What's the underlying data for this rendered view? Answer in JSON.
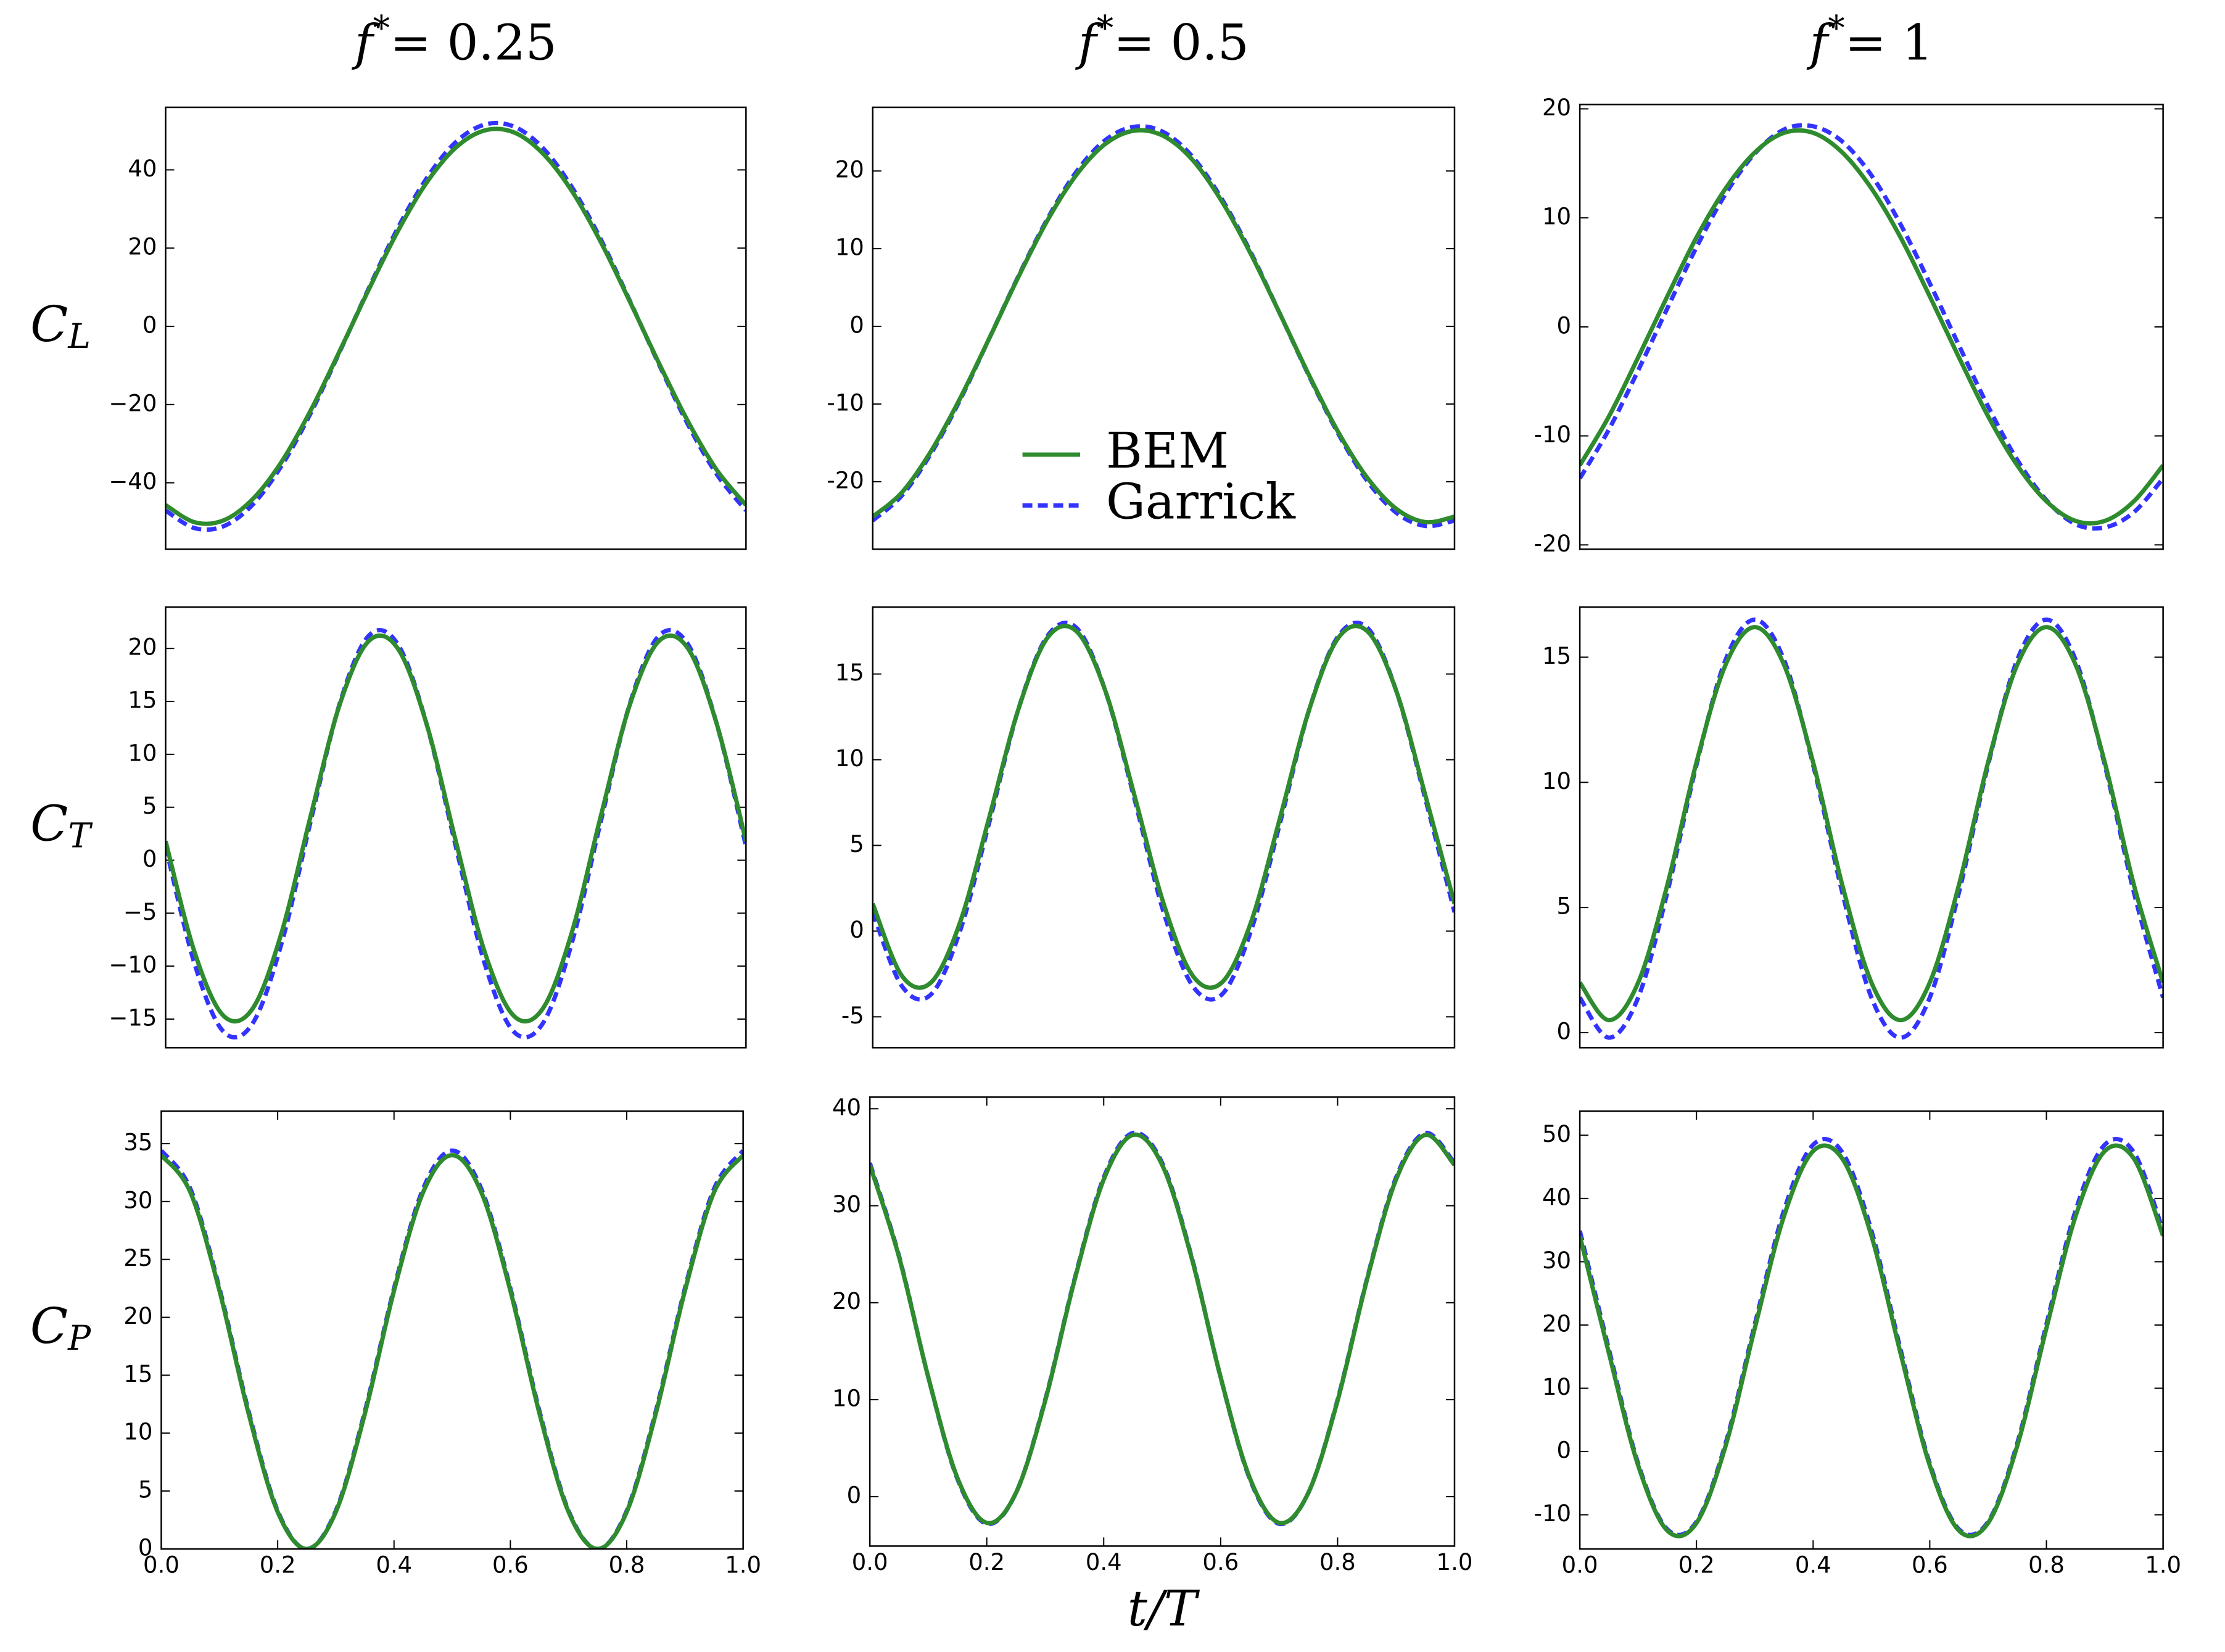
{
  "chart_data": [
    {
      "type": "line",
      "title": "f*= 0.25",
      "ylabel": "CL",
      "x": [
        0,
        0.05,
        0.1,
        0.15,
        0.2,
        0.25,
        0.3,
        0.35,
        0.4,
        0.45,
        0.5,
        0.55,
        0.6,
        0.65,
        0.7,
        0.75,
        0.8,
        0.85,
        0.9,
        0.95,
        1
      ],
      "series": [
        {
          "name": "BEM",
          "color": "#2e8b2e",
          "linestyle": "solid",
          "values": [
            -45.7,
            -50.1,
            -49.6,
            -44.2,
            -34.6,
            -21.5,
            -6.3,
            9.4,
            24.3,
            36.8,
            45.7,
            50.1,
            49.6,
            44.2,
            34.6,
            21.5,
            6.3,
            -9.4,
            -24.3,
            -36.8,
            -45.7
          ]
        },
        {
          "name": "Garrick",
          "color": "#3333ff",
          "linestyle": "dashed",
          "values": [
            -47.1,
            -51.6,
            -51.1,
            -45.6,
            -35.6,
            -22.2,
            -6.5,
            9.7,
            25.1,
            37.9,
            47.1,
            51.6,
            51.1,
            45.6,
            35.6,
            22.2,
            6.5,
            -9.7,
            -25.1,
            -37.9,
            -47.1
          ]
        }
      ],
      "xlim": [
        0,
        1
      ],
      "ylim": [
        -57,
        56
      ],
      "yticks": [
        {
          "value": -40,
          "label": "−40"
        },
        {
          "value": -20,
          "label": "−20"
        },
        0,
        20,
        40
      ]
    },
    {
      "type": "line",
      "title": "f*= 0.5",
      "legend": "lower center",
      "x": [
        0,
        0.05,
        0.1,
        0.15,
        0.2,
        0.25,
        0.3,
        0.35,
        0.4,
        0.45,
        0.5,
        0.55,
        0.6,
        0.65,
        0.7,
        0.75,
        0.8,
        0.85,
        0.9,
        0.95,
        1
      ],
      "series": [
        {
          "name": "BEM",
          "color": "#2e8b2e",
          "linestyle": "solid",
          "values": [
            -24.5,
            -21.4,
            -16.1,
            -9.3,
            -1.6,
            6.3,
            13.6,
            19.5,
            23.5,
            25.2,
            24.5,
            21.4,
            16.1,
            9.3,
            1.6,
            -6.3,
            -13.6,
            -19.5,
            -23.5,
            -25.2,
            -24.5
          ]
        },
        {
          "name": "Garrick",
          "color": "#3333ff",
          "linestyle": "dashed",
          "values": [
            -25.0,
            -21.8,
            -16.4,
            -9.5,
            -1.6,
            6.4,
            13.8,
            19.9,
            24.0,
            25.7,
            25.0,
            21.8,
            16.4,
            9.5,
            1.6,
            -6.4,
            -13.8,
            -19.9,
            -24.0,
            -25.7,
            -25.0
          ]
        }
      ],
      "xlim": [
        0,
        1
      ],
      "ylim": [
        -28.7,
        28.2
      ],
      "yticks": [
        -20,
        -10,
        0,
        10,
        20
      ]
    },
    {
      "type": "line",
      "title": "f*= 1",
      "x": [
        0,
        0.05,
        0.1,
        0.15,
        0.2,
        0.25,
        0.3,
        0.35,
        0.4,
        0.45,
        0.5,
        0.55,
        0.6,
        0.65,
        0.7,
        0.75,
        0.8,
        0.85,
        0.9,
        0.95,
        1
      ],
      "series": [
        {
          "name": "BEM",
          "color": "#2e8b2e",
          "linestyle": "solid",
          "values": [
            -12.7,
            -8.2,
            -2.8,
            2.8,
            8.2,
            12.7,
            16.0,
            17.8,
            17.8,
            16.0,
            12.7,
            8.2,
            2.8,
            -2.8,
            -8.2,
            -12.7,
            -16.0,
            -17.8,
            -17.8,
            -16.0,
            -12.7
          ]
        },
        {
          "name": "Garrick",
          "color": "#3333ff",
          "linestyle": "dashed",
          "values": [
            -13.9,
            -9.4,
            -4.0,
            1.7,
            7.3,
            12.2,
            15.9,
            18.1,
            18.4,
            17.0,
            13.9,
            9.4,
            4.0,
            -1.7,
            -7.3,
            -12.2,
            -15.9,
            -18.1,
            -18.4,
            -17.0,
            -13.9
          ]
        }
      ],
      "xlim": [
        0,
        1
      ],
      "ylim": [
        -20.4,
        20.4
      ],
      "yticks": [
        -20,
        -10,
        0,
        10,
        20
      ]
    },
    {
      "type": "line",
      "ylabel": "CT",
      "x": [
        0,
        0.05,
        0.1,
        0.15,
        0.2,
        0.25,
        0.3,
        0.35,
        0.4,
        0.45,
        0.5,
        0.55,
        0.6,
        0.65,
        0.7,
        0.75,
        0.8,
        0.85,
        0.9,
        0.95,
        1
      ],
      "series": [
        {
          "name": "BEM",
          "color": "#2e8b2e",
          "linestyle": "solid",
          "values": [
            1.8,
            -8.7,
            -14.7,
            -14.0,
            -6.8,
            4.2,
            14.7,
            20.7,
            20.0,
            12.8,
            1.8,
            -8.7,
            -14.7,
            -14.0,
            -6.8,
            4.2,
            14.7,
            20.7,
            20.0,
            12.8,
            1.8
          ]
        },
        {
          "name": "Garrick",
          "color": "#3333ff",
          "linestyle": "dashed",
          "values": [
            1.3,
            -9.8,
            -16.2,
            -15.4,
            -7.8,
            3.7,
            14.8,
            21.2,
            20.4,
            12.8,
            1.3,
            -9.8,
            -16.2,
            -15.4,
            -7.8,
            3.7,
            14.8,
            21.2,
            20.4,
            12.8,
            1.3
          ]
        }
      ],
      "xlim": [
        0,
        1
      ],
      "ylim": [
        -17.7,
        23.9
      ],
      "yticks": [
        {
          "value": -15,
          "label": "−15"
        },
        {
          "value": -10,
          "label": "−10"
        },
        {
          "value": -5,
          "label": "−5"
        },
        0,
        5,
        10,
        15,
        20
      ]
    },
    {
      "type": "line",
      "x": [
        0,
        0.05,
        0.1,
        0.15,
        0.2,
        0.25,
        0.3,
        0.35,
        0.4,
        0.45,
        0.5,
        0.55,
        0.6,
        0.65,
        0.7,
        0.75,
        0.8,
        0.85,
        0.9,
        0.95,
        1
      ],
      "series": [
        {
          "name": "BEM",
          "color": "#2e8b2e",
          "linestyle": "solid",
          "values": [
            1.6,
            -2.6,
            -3.0,
            0.5,
            6.6,
            12.9,
            17.1,
            17.5,
            14.0,
            7.9,
            1.6,
            -2.6,
            -3.0,
            0.5,
            6.6,
            12.9,
            17.1,
            17.5,
            14.0,
            7.9,
            1.6
          ]
        },
        {
          "name": "Garrick",
          "color": "#3333ff",
          "linestyle": "dashed",
          "values": [
            1.1,
            -3.2,
            -3.7,
            0.0,
            6.3,
            12.9,
            17.2,
            17.7,
            14.0,
            7.7,
            1.1,
            -3.2,
            -3.7,
            0.0,
            6.3,
            12.9,
            17.2,
            17.7,
            14.0,
            7.7,
            1.1
          ]
        }
      ],
      "xlim": [
        0,
        1
      ],
      "ylim": [
        -6.8,
        18.9
      ],
      "yticks": [
        -5,
        0,
        5,
        10,
        15
      ]
    },
    {
      "type": "line",
      "x": [
        0,
        0.05,
        0.1,
        0.15,
        0.2,
        0.25,
        0.3,
        0.35,
        0.4,
        0.45,
        0.5,
        0.55,
        0.6,
        0.65,
        0.7,
        0.75,
        0.8,
        0.85,
        0.9,
        0.95,
        1
      ],
      "series": [
        {
          "name": "BEM",
          "color": "#2e8b2e",
          "linestyle": "solid",
          "values": [
            2.0,
            0.5,
            2.0,
            5.9,
            10.8,
            14.7,
            16.2,
            14.7,
            10.8,
            5.9,
            2.0,
            0.5,
            2.0,
            5.9,
            10.8,
            14.7,
            16.2,
            14.7,
            10.8,
            5.9,
            2.0
          ]
        },
        {
          "name": "Garrick",
          "color": "#3333ff",
          "linestyle": "dashed",
          "values": [
            1.4,
            -0.2,
            1.4,
            5.6,
            10.7,
            14.9,
            16.5,
            14.9,
            10.7,
            5.6,
            1.4,
            -0.2,
            1.4,
            5.6,
            10.7,
            14.9,
            16.5,
            14.9,
            10.7,
            5.6,
            1.4
          ]
        }
      ],
      "xlim": [
        0,
        1
      ],
      "ylim": [
        -0.6,
        17.0
      ],
      "yticks": [
        0,
        5,
        10,
        15
      ]
    },
    {
      "type": "line",
      "ylabel": "CP",
      "x": [
        0,
        0.05,
        0.1,
        0.15,
        0.2,
        0.25,
        0.3,
        0.35,
        0.4,
        0.45,
        0.5,
        0.55,
        0.6,
        0.65,
        0.7,
        0.75,
        0.8,
        0.85,
        0.9,
        0.95,
        1
      ],
      "series": [
        {
          "name": "BEM",
          "color": "#2e8b2e",
          "linestyle": "solid",
          "values": [
            34,
            30.8,
            22.3,
            11.7,
            3.2,
            0,
            3.2,
            11.7,
            22.3,
            30.8,
            34,
            30.8,
            22.3,
            11.7,
            3.2,
            0,
            3.2,
            11.7,
            22.3,
            30.8,
            34
          ]
        },
        {
          "name": "Garrick",
          "color": "#3333ff",
          "linestyle": "dashed",
          "values": [
            34.4,
            31.1,
            22.5,
            11.9,
            3.3,
            0,
            3.3,
            11.9,
            22.5,
            31.1,
            34.4,
            31.1,
            22.5,
            11.9,
            3.3,
            0,
            3.3,
            11.9,
            22.5,
            31.1,
            34.4
          ]
        }
      ],
      "xlim": [
        0,
        1
      ],
      "ylim": [
        0,
        37.8
      ],
      "yticks": [
        0,
        5,
        10,
        15,
        20,
        25,
        30,
        35
      ],
      "xticks": [
        {
          "value": 0,
          "label": "0.0"
        },
        0.2,
        0.4,
        0.6,
        0.8,
        {
          "value": 1,
          "label": "1.0"
        }
      ]
    },
    {
      "type": "line",
      "xlabel": "t/T",
      "x": [
        0,
        0.05,
        0.1,
        0.15,
        0.2,
        0.25,
        0.3,
        0.35,
        0.4,
        0.45,
        0.5,
        0.55,
        0.6,
        0.65,
        0.7,
        0.75,
        0.8,
        0.85,
        0.9,
        0.95,
        1
      ],
      "series": [
        {
          "name": "BEM",
          "color": "#2e8b2e",
          "linestyle": "solid",
          "values": [
            34.2,
            24.7,
            12.3,
            1.9,
            -2.7,
            0.4,
            9.9,
            22.3,
            32.7,
            37.3,
            34.2,
            24.7,
            12.3,
            1.9,
            -2.7,
            0.4,
            9.9,
            22.3,
            32.7,
            37.3,
            34.2
          ]
        },
        {
          "name": "Garrick",
          "color": "#3333ff",
          "linestyle": "dashed",
          "values": [
            34.4,
            24.8,
            12.3,
            1.8,
            -2.8,
            0.4,
            10.0,
            22.4,
            32.9,
            37.5,
            34.4,
            24.8,
            12.3,
            1.8,
            -2.8,
            0.4,
            10.0,
            22.4,
            32.9,
            37.5,
            34.4
          ]
        }
      ],
      "xlim": [
        0,
        1
      ],
      "ylim": [
        -5.1,
        41.2
      ],
      "yticks": [
        0,
        10,
        20,
        30,
        40
      ],
      "xticks": [
        {
          "value": 0,
          "label": "0.0"
        },
        0.2,
        0.4,
        0.6,
        0.8,
        {
          "value": 1,
          "label": "1.0"
        }
      ]
    },
    {
      "type": "line",
      "x": [
        0,
        0.05,
        0.1,
        0.15,
        0.2,
        0.25,
        0.3,
        0.35,
        0.4,
        0.45,
        0.5,
        0.55,
        0.6,
        0.65,
        0.7,
        0.75,
        0.8,
        0.85,
        0.9,
        0.95,
        1
      ],
      "series": [
        {
          "name": "BEM",
          "color": "#2e8b2e",
          "linestyle": "solid",
          "values": [
            34.1,
            15.5,
            -2.2,
            -12.5,
            -11.3,
            0.9,
            19.5,
            37.2,
            47.5,
            46.3,
            34.1,
            15.5,
            -2.2,
            -12.5,
            -11.3,
            0.9,
            19.5,
            37.2,
            47.5,
            46.3,
            34.1
          ]
        },
        {
          "name": "Garrick",
          "color": "#3333ff",
          "linestyle": "dashed",
          "values": [
            34.9,
            16.1,
            -1.9,
            -12.3,
            -11.1,
            1.3,
            20.1,
            38.1,
            48.5,
            47.3,
            34.9,
            16.1,
            -1.9,
            -12.3,
            -11.1,
            1.3,
            20.1,
            38.1,
            48.5,
            47.3,
            34.9
          ]
        }
      ],
      "xlim": [
        0,
        1
      ],
      "ylim": [
        -15.4,
        53.8
      ],
      "yticks": [
        -10,
        0,
        10,
        20,
        30,
        40,
        50
      ],
      "xticks": [
        {
          "value": 0,
          "label": "0.0"
        },
        0.2,
        0.4,
        0.6,
        0.8,
        {
          "value": 1,
          "label": "1.0"
        }
      ]
    }
  ]
}
